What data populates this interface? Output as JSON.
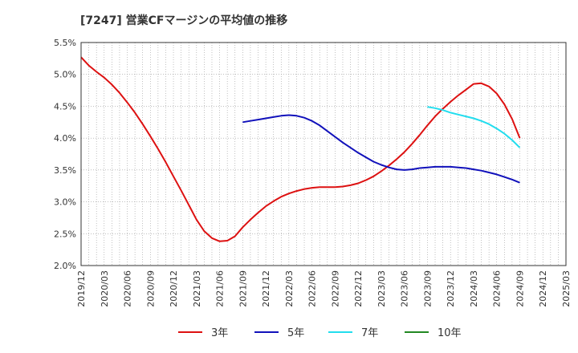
{
  "title": "[7247]  営業CFマージンの平均値の推移",
  "chart_data": {
    "type": "line",
    "title": "[7247]  営業CFマージンの平均値の推移",
    "xlabel": "",
    "ylabel": "",
    "ylim": [
      2.0,
      5.5
    ],
    "y_ticks": [
      "5.5%",
      "5.0%",
      "4.5%",
      "4.0%",
      "3.5%",
      "3.0%",
      "2.5%",
      "2.0%"
    ],
    "x_ticks": [
      "2019/12",
      "2020/03",
      "2020/06",
      "2020/09",
      "2020/12",
      "2021/03",
      "2021/06",
      "2021/09",
      "2021/12",
      "2022/03",
      "2022/06",
      "2022/09",
      "2022/12",
      "2023/03",
      "2023/06",
      "2023/09",
      "2023/12",
      "2024/03",
      "2024/06",
      "2024/09",
      "2024/12",
      "2025/03"
    ],
    "grid": true,
    "legend_position": "bottom",
    "series": [
      {
        "name": "3年",
        "color": "#dd1111",
        "x": [
          "2019/12",
          "2020/01",
          "2020/02",
          "2020/03",
          "2020/04",
          "2020/05",
          "2020/06",
          "2020/07",
          "2020/08",
          "2020/09",
          "2020/10",
          "2020/11",
          "2020/12",
          "2021/01",
          "2021/02",
          "2021/03",
          "2021/04",
          "2021/05",
          "2021/06",
          "2021/07",
          "2021/08",
          "2021/09",
          "2021/10",
          "2021/11",
          "2021/12",
          "2022/01",
          "2022/02",
          "2022/03",
          "2022/04",
          "2022/05",
          "2022/06",
          "2022/07",
          "2022/08",
          "2022/09",
          "2022/10",
          "2022/11",
          "2022/12",
          "2023/01",
          "2023/02",
          "2023/03",
          "2023/04",
          "2023/05",
          "2023/06",
          "2023/07",
          "2023/08",
          "2023/09",
          "2023/10",
          "2023/11",
          "2023/12",
          "2024/01",
          "2024/02",
          "2024/03",
          "2024/04",
          "2024/05",
          "2024/06",
          "2024/07",
          "2024/08",
          "2024/09"
        ],
        "values": [
          5.27,
          5.14,
          5.04,
          4.95,
          4.84,
          4.71,
          4.56,
          4.4,
          4.22,
          4.03,
          3.83,
          3.62,
          3.4,
          3.18,
          2.95,
          2.72,
          2.54,
          2.43,
          2.38,
          2.39,
          2.46,
          2.6,
          2.72,
          2.83,
          2.93,
          3.01,
          3.08,
          3.13,
          3.17,
          3.2,
          3.22,
          3.23,
          3.23,
          3.23,
          3.24,
          3.26,
          3.29,
          3.34,
          3.4,
          3.48,
          3.57,
          3.67,
          3.78,
          3.91,
          4.05,
          4.2,
          4.34,
          4.46,
          4.57,
          4.67,
          4.76,
          4.85,
          4.86,
          4.81,
          4.7,
          4.53,
          4.3,
          4.0
        ]
      },
      {
        "name": "5年",
        "color": "#1111bb",
        "x": [
          "2021/09",
          "2021/10",
          "2021/11",
          "2021/12",
          "2022/01",
          "2022/02",
          "2022/03",
          "2022/04",
          "2022/05",
          "2022/06",
          "2022/07",
          "2022/08",
          "2022/09",
          "2022/10",
          "2022/11",
          "2022/12",
          "2023/01",
          "2023/02",
          "2023/03",
          "2023/04",
          "2023/05",
          "2023/06",
          "2023/07",
          "2023/08",
          "2023/09",
          "2023/10",
          "2023/11",
          "2023/12",
          "2024/01",
          "2024/02",
          "2024/03",
          "2024/04",
          "2024/05",
          "2024/06",
          "2024/07",
          "2024/08",
          "2024/09"
        ],
        "values": [
          4.25,
          4.27,
          4.29,
          4.31,
          4.33,
          4.35,
          4.36,
          4.35,
          4.32,
          4.27,
          4.2,
          4.11,
          4.02,
          3.93,
          3.85,
          3.77,
          3.7,
          3.63,
          3.58,
          3.54,
          3.51,
          3.5,
          3.51,
          3.53,
          3.54,
          3.55,
          3.55,
          3.55,
          3.54,
          3.53,
          3.51,
          3.49,
          3.46,
          3.43,
          3.39,
          3.35,
          3.3
        ]
      },
      {
        "name": "7年",
        "color": "#22ddee",
        "x": [
          "2023/09",
          "2023/10",
          "2023/11",
          "2023/12",
          "2024/01",
          "2024/02",
          "2024/03",
          "2024/04",
          "2024/05",
          "2024/06",
          "2024/07",
          "2024/08",
          "2024/09"
        ],
        "values": [
          4.49,
          4.47,
          4.44,
          4.4,
          4.37,
          4.34,
          4.31,
          4.27,
          4.22,
          4.15,
          4.07,
          3.97,
          3.85
        ]
      },
      {
        "name": "10年",
        "color": "#228822",
        "x": [],
        "values": []
      }
    ]
  }
}
